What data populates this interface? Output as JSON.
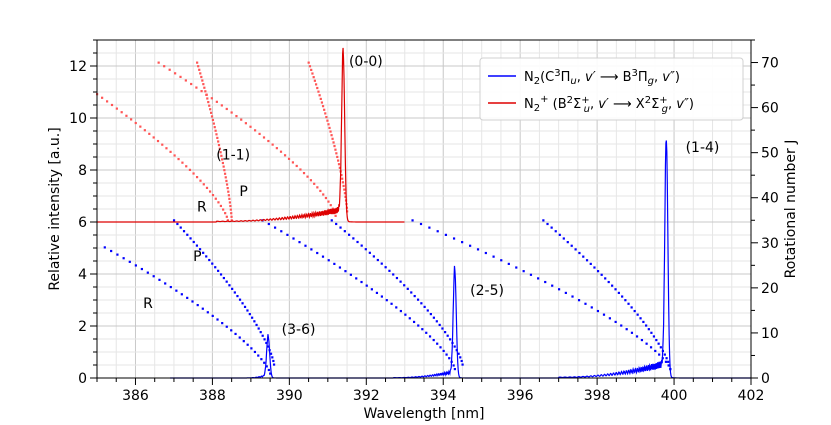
{
  "chart_data": {
    "type": "line",
    "xlabel": "Wavelength [nm]",
    "ylabel": "Relative intensity [a.u.]",
    "y2label": "Rotational number J",
    "xlim": [
      385,
      402
    ],
    "ylim": [
      0,
      13
    ],
    "y2lim": [
      0,
      75
    ],
    "grid": true,
    "xticks": [
      386,
      388,
      390,
      392,
      394,
      396,
      398,
      400,
      402
    ],
    "yticks": [
      0,
      2,
      4,
      6,
      8,
      10,
      12
    ],
    "y2ticks": [
      0,
      10,
      20,
      30,
      40,
      50,
      60,
      70
    ],
    "legend": {
      "placement": "top-right",
      "entries": [
        {
          "label_html": "N<tspan font-size='10' dy='3'>2</tspan><tspan dy='-3'>(C</tspan><tspan font-size='10' dy='-5'>3</tspan><tspan dy='5'>Π</tspan><tspan font-size='10' dy='3' font-style='italic'>u</tspan><tspan dy='-3'>, </tspan><tspan font-style='italic'>v′</tspan><tspan> ⟶ B</tspan><tspan font-size='10' dy='-5'>3</tspan><tspan dy='5'>Π</tspan><tspan font-size='10' dy='3' font-style='italic'>g</tspan><tspan dy='-3'>, </tspan><tspan font-style='italic'>v″</tspan><tspan>)</tspan>",
          "color": "#0000ff"
        },
        {
          "label_html": "N<tspan font-size='10' dy='3'>2</tspan><tspan font-size='10' dy='-9'>+</tspan><tspan dy='6'> (B</tspan><tspan font-size='10' dy='-5'>2</tspan><tspan dy='5'>Σ</tspan><tspan font-size='10' dy='-5'>+</tspan><tspan font-size='10' dx='-6' dy='9' font-style='italic'>u</tspan><tspan dy='-4'>, </tspan><tspan font-style='italic'>v′</tspan><tspan> ⟶ X</tspan><tspan font-size='10' dy='-5'>2</tspan><tspan dy='5'>Σ</tspan><tspan font-size='10' dy='-5'>+</tspan><tspan font-size='10' dx='-6' dy='9' font-style='italic'>g</tspan><tspan dy='-4'>, </tspan><tspan font-style='italic'>v″</tspan><tspan>)</tspan>",
          "color": "#dd0000"
        }
      ]
    },
    "series": [
      {
        "name": "N2 (C-B) spectrum",
        "color": "#0000ff",
        "baseline": 0,
        "x_range": [
          386.9,
          402
        ],
        "peaks": [
          {
            "x": 389.45,
            "height": 1.55,
            "head_start": 388.9,
            "ripple_amp": 0.15
          },
          {
            "x": 394.3,
            "height": 4.1,
            "head_start": 392.7,
            "ripple_amp": 0.3
          },
          {
            "x": 399.8,
            "height": 9.05,
            "head_start": 397.0,
            "ripple_amp": 0.7
          }
        ]
      },
      {
        "name": "N2+ (B-X) spectrum",
        "color": "#dd0000",
        "baseline": 6,
        "x_range": [
          385,
          393.0
        ],
        "peaks": [
          {
            "x": 391.4,
            "height": 6.35,
            "head_start": 388.1,
            "ripple_amp": 0.6
          }
        ]
      }
    ],
    "rotational_branches": [
      {
        "color": "#0000ff",
        "branch": "R",
        "x_start": 385.2,
        "j_start": 29,
        "x_end": 389.5,
        "j_end": 1
      },
      {
        "color": "#0000ff",
        "branch": "P",
        "x_start": 387.0,
        "j_start": 35,
        "x_end": 389.6,
        "j_end": 3
      },
      {
        "color": "#0000ff",
        "branch": "R",
        "x_start": 389.3,
        "j_start": 35,
        "x_end": 394.3,
        "j_end": 2
      },
      {
        "color": "#0000ff",
        "branch": "P",
        "x_start": 391.1,
        "j_start": 35,
        "x_end": 394.5,
        "j_end": 3
      },
      {
        "color": "#0000ff",
        "branch": "R",
        "x_start": 393.2,
        "j_start": 35,
        "x_end": 399.9,
        "j_end": 2
      },
      {
        "color": "#0000ff",
        "branch": "P",
        "x_start": 396.6,
        "j_start": 35,
        "x_end": 399.9,
        "j_end": 2
      },
      {
        "color": "#ff5555",
        "branch": "R",
        "x_start": 385.0,
        "j_start": 63,
        "x_end": 388.4,
        "j_end": 35
      },
      {
        "color": "#ff5555",
        "branch": "P",
        "x_start": 387.6,
        "j_start": 70,
        "x_end": 388.5,
        "j_end": 35
      },
      {
        "color": "#ff5555",
        "branch": "R",
        "x_start": 386.6,
        "j_start": 70,
        "x_end": 391.2,
        "j_end": 36
      },
      {
        "color": "#ff5555",
        "branch": "P",
        "x_start": 390.5,
        "j_start": 70,
        "x_end": 391.5,
        "j_end": 37
      }
    ],
    "annotations": [
      {
        "text": "(0-0)",
        "x": 391.55,
        "y": 12.0
      },
      {
        "text": "(1-1)",
        "x": 388.1,
        "y": 8.4
      },
      {
        "text": "P",
        "x": 388.7,
        "y": 7.0
      },
      {
        "text": "R",
        "x": 387.6,
        "y": 6.4
      },
      {
        "text": "P",
        "x": 387.5,
        "y": 4.5
      },
      {
        "text": "R",
        "x": 386.2,
        "y": 2.7
      },
      {
        "text": "(1-4)",
        "x": 400.3,
        "y": 8.7
      },
      {
        "text": "(2-5)",
        "x": 394.7,
        "y": 3.2
      },
      {
        "text": "(3-6)",
        "x": 389.8,
        "y": 1.7
      }
    ]
  }
}
